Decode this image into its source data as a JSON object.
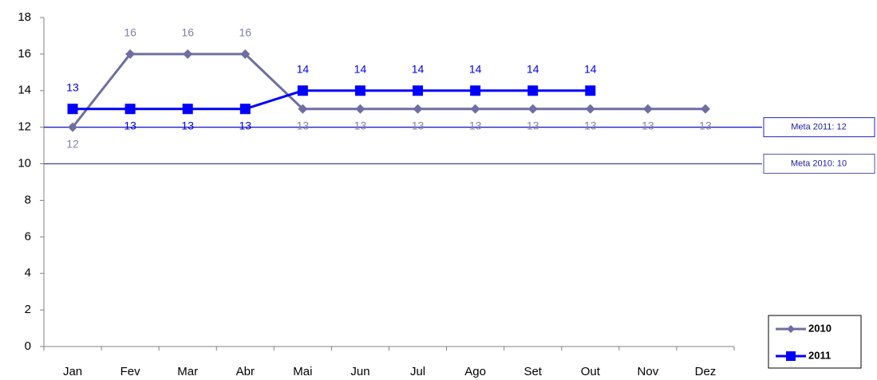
{
  "chart_data": {
    "type": "line",
    "categories": [
      "Jan",
      "Fev",
      "Mar",
      "Abr",
      "Mai",
      "Jun",
      "Jul",
      "Ago",
      "Set",
      "Out",
      "Nov",
      "Dez"
    ],
    "series": [
      {
        "name": "2010",
        "color": "#6e6ea0",
        "marker": "diamond",
        "values": [
          12,
          16,
          16,
          16,
          13,
          13,
          13,
          13,
          13,
          13,
          13,
          13
        ]
      },
      {
        "name": "2011",
        "color": "#0000ff",
        "marker": "square",
        "values": [
          13,
          13,
          13,
          13,
          14,
          14,
          14,
          14,
          14,
          14,
          null,
          null
        ]
      }
    ],
    "ylim": [
      0,
      18
    ],
    "yticks": [
      0,
      2,
      4,
      6,
      8,
      10,
      12,
      14,
      16,
      18
    ],
    "annotations": [
      {
        "label": "Meta 2011: 12",
        "value": 12,
        "color": "#2020c8"
      },
      {
        "label": "Meta 2010: 10",
        "value": 10,
        "color": "#5050a8"
      }
    ],
    "legend": "bottom-right"
  }
}
